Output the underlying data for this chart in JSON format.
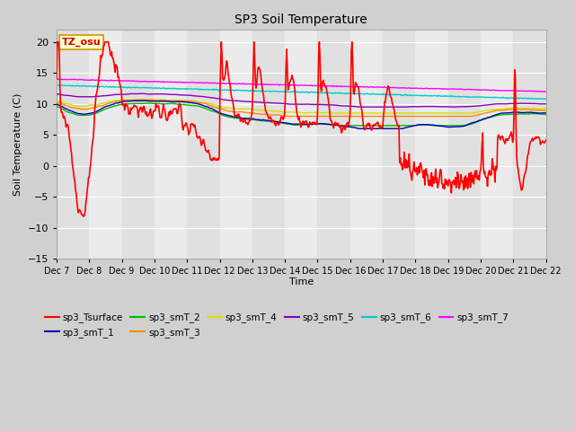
{
  "title": "SP3 Soil Temperature",
  "ylabel": "Soil Temperature (C)",
  "xlabel": "Time",
  "ylim": [
    -15,
    22
  ],
  "yticks": [
    -15,
    -10,
    -5,
    0,
    5,
    10,
    15,
    20
  ],
  "annotation_text": "TZ_osu",
  "annotation_bg": "#ffffcc",
  "annotation_border": "#cc9900",
  "annotation_text_color": "#cc0000",
  "series_colors": {
    "sp3_Tsurface": "#ff0000",
    "sp3_smT_1": "#0000bb",
    "sp3_smT_2": "#00bb00",
    "sp3_smT_3": "#ff8800",
    "sp3_smT_4": "#dddd00",
    "sp3_smT_5": "#8800bb",
    "sp3_smT_6": "#00cccc",
    "sp3_smT_7": "#ff00ff"
  },
  "start_day": 7,
  "end_day": 22,
  "pts_per_day": 48,
  "bg_color": "#d0d0d0",
  "plot_bg_even": "#e0e0e0",
  "plot_bg_odd": "#ebebeb",
  "grid_color": "#ffffff"
}
